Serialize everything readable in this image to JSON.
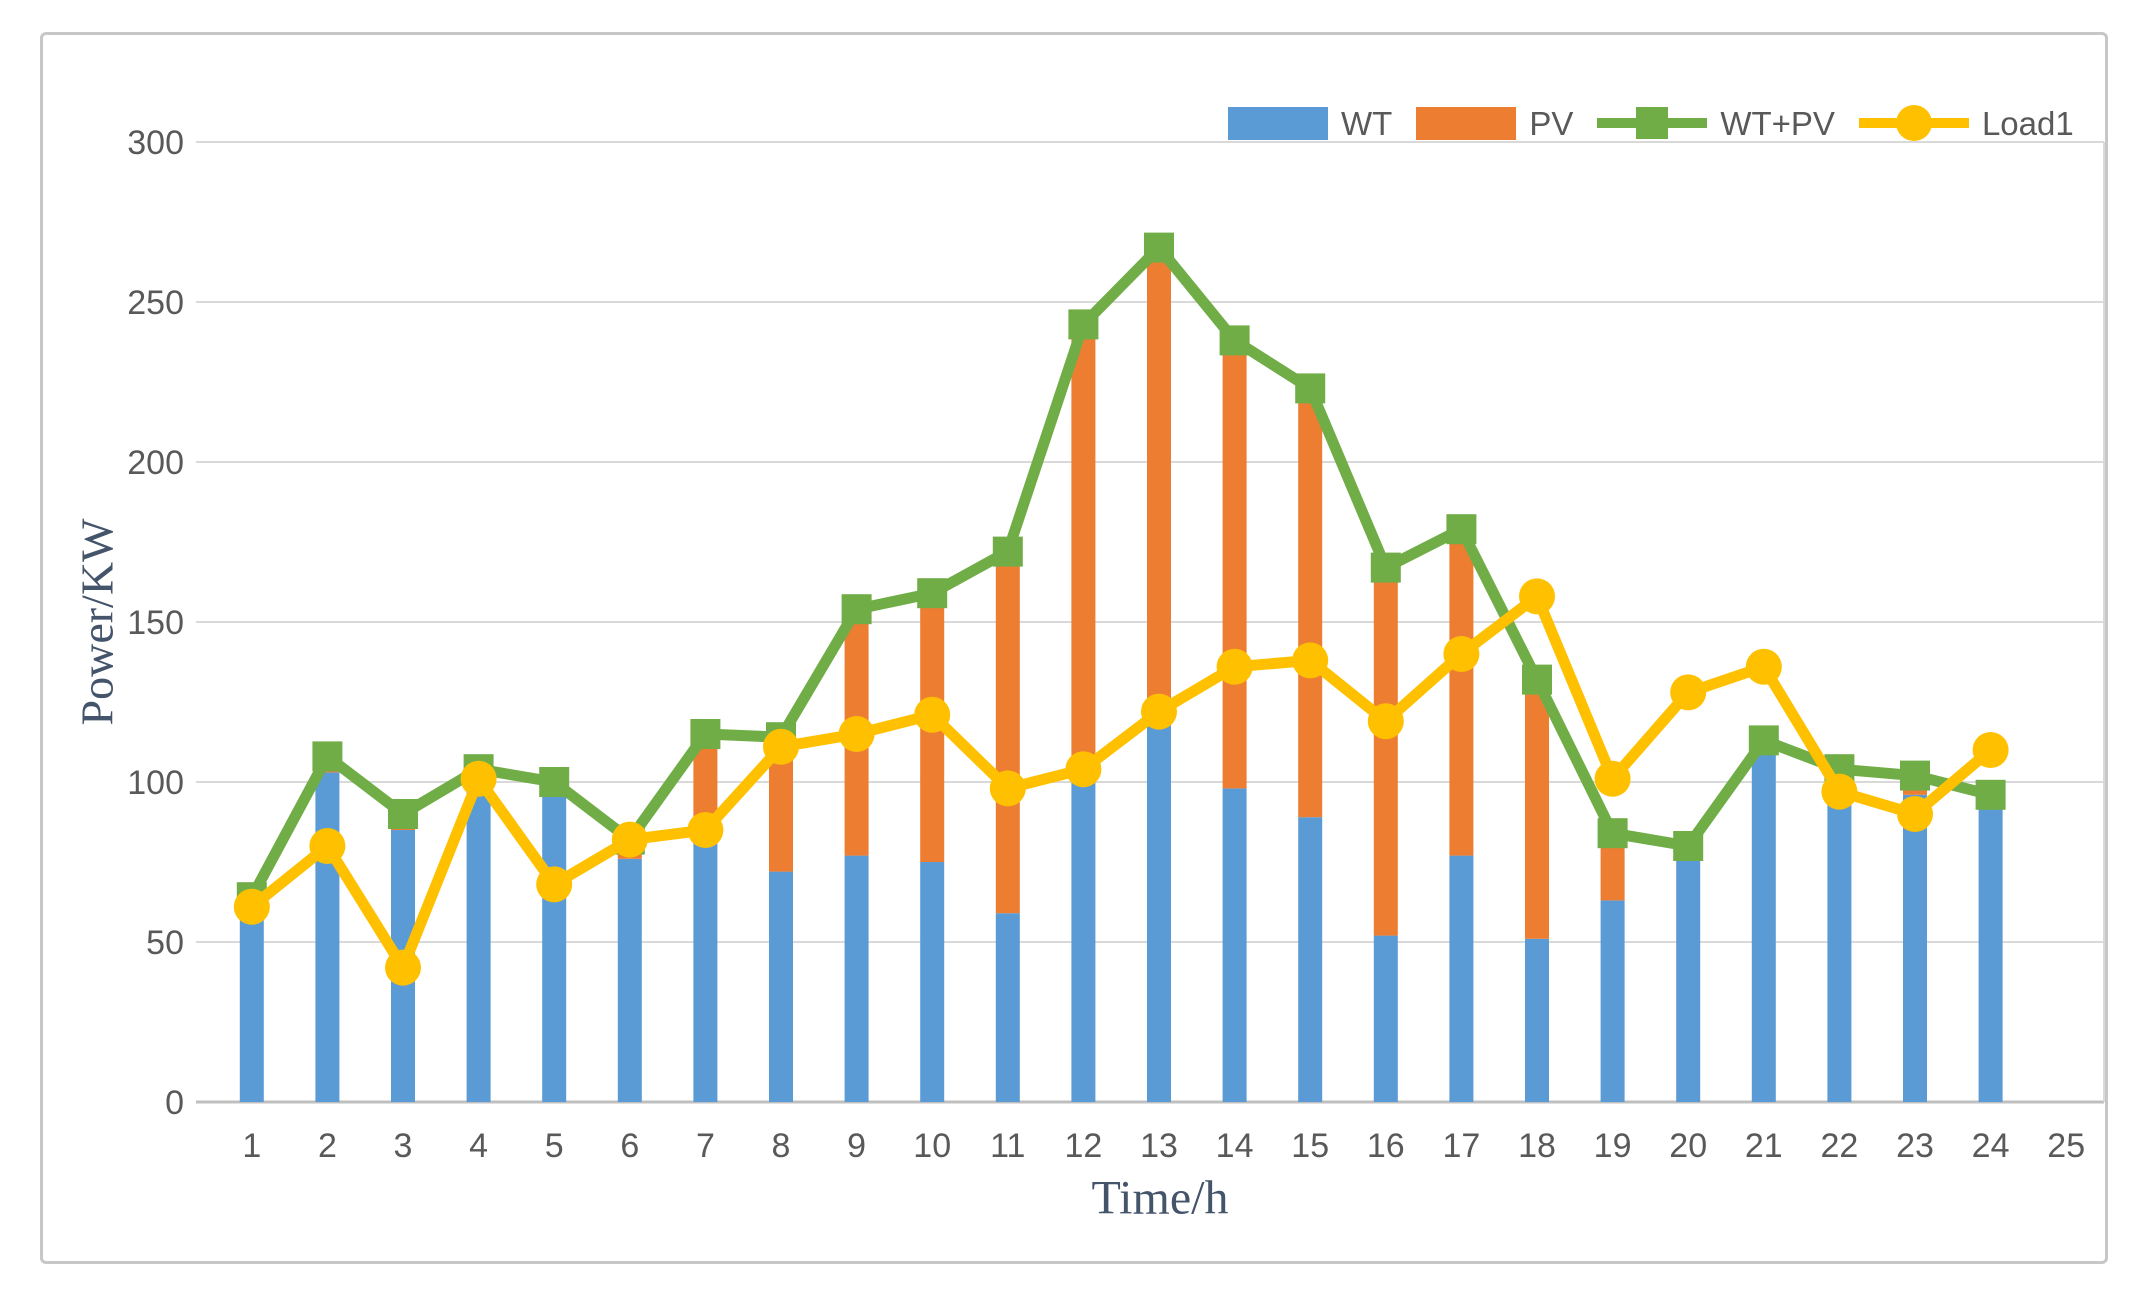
{
  "chart_data": {
    "type": "bar",
    "subtype": "stacked-bars-with-overlay-lines",
    "title": "",
    "xlabel": "Time/h",
    "ylabel": "Power/KW",
    "ylim": [
      0,
      300
    ],
    "ytick_step": 50,
    "yticks": [
      "0",
      "50",
      "100",
      "150",
      "200",
      "250",
      "300"
    ],
    "xticks": [
      "1",
      "2",
      "3",
      "4",
      "5",
      "6",
      "7",
      "8",
      "9",
      "10",
      "11",
      "12",
      "13",
      "14",
      "15",
      "16",
      "17",
      "18",
      "19",
      "20",
      "21",
      "22",
      "23",
      "24",
      "25"
    ],
    "categories": [
      1,
      2,
      3,
      4,
      5,
      6,
      7,
      8,
      9,
      10,
      11,
      12,
      13,
      14,
      15,
      16,
      17,
      18,
      19,
      20,
      21,
      22,
      23,
      24
    ],
    "grid": true,
    "legend_position": "top-right",
    "series": [
      {
        "name": "WT",
        "type": "bar",
        "stack": "power",
        "color": "#5B9BD5",
        "values": [
          60,
          103,
          85,
          100,
          96,
          76,
          82,
          72,
          77,
          75,
          59,
          100,
          119,
          98,
          89,
          52,
          77,
          51,
          63,
          77,
          110,
          99,
          96,
          93
        ]
      },
      {
        "name": "PV",
        "type": "bar",
        "stack": "power",
        "color": "#ED7D31",
        "values": [
          4,
          5,
          5,
          4,
          4,
          6,
          33,
          42,
          77,
          84,
          113,
          143,
          148,
          140,
          134,
          115,
          102,
          81,
          21,
          3,
          3,
          5,
          6,
          3
        ]
      },
      {
        "name": "WT+PV",
        "type": "line",
        "marker": "square",
        "color": "#70AD47",
        "values": [
          64,
          108,
          90,
          104,
          100,
          82,
          115,
          114,
          154,
          159,
          172,
          243,
          267,
          238,
          223,
          167,
          179,
          132,
          84,
          80,
          113,
          104,
          102,
          96
        ]
      },
      {
        "name": "Load1",
        "type": "line",
        "marker": "circle",
        "color": "#FFC000",
        "values": [
          61,
          80,
          42,
          101,
          68,
          82,
          85,
          111,
          115,
          121,
          98,
          104,
          122,
          136,
          138,
          119,
          140,
          158,
          101,
          128,
          136,
          97,
          90,
          110
        ]
      }
    ]
  },
  "legend": {
    "wt_label": "WT",
    "pv_label": "PV",
    "wtpv_label": "WT+PV",
    "load1_label": "Load1"
  },
  "axes": {
    "y_title": "Power/KW",
    "x_title": "Time/h"
  },
  "colors": {
    "wt": "#5B9BD5",
    "pv": "#ED7D31",
    "wtpv": "#70AD47",
    "load1": "#FFC000",
    "gridline": "#D9D9D9",
    "baseline": "#BFBFBF",
    "tick_text": "#595959",
    "title_text": "#44546A",
    "frame_border": "#C7C7C7"
  }
}
